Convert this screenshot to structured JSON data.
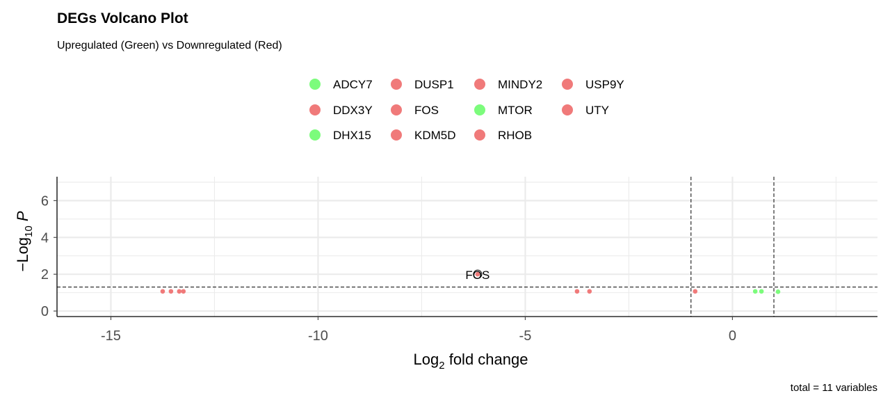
{
  "chart_data": {
    "type": "scatter",
    "title": "DEGs Volcano Plot",
    "subtitle": "Upregulated (Green) vs Downregulated (Red)",
    "xlabel": "Log2 fold change",
    "ylabel": "-Log10 P",
    "xlim": [
      -16.3,
      3.5
    ],
    "ylim": [
      -0.3,
      7.3
    ],
    "x_ticks": [
      -15,
      -10,
      -5,
      0
    ],
    "y_ticks": [
      0,
      2,
      4,
      6
    ],
    "grid": true,
    "fc_cutoff_lines": [
      -1,
      1
    ],
    "p_cutoff_line": 1.3,
    "colors": {
      "up": "#7cfc7c",
      "down": "#f07a7a",
      "grid": "#ebebeb",
      "axis": "#000000",
      "tick": "#4d4d4d"
    },
    "legend_position": "top",
    "legend": [
      {
        "name": "ADCY7",
        "status": "up"
      },
      {
        "name": "DDX3Y",
        "status": "down"
      },
      {
        "name": "DHX15",
        "status": "up"
      },
      {
        "name": "DUSP1",
        "status": "down"
      },
      {
        "name": "FOS",
        "status": "down"
      },
      {
        "name": "KDM5D",
        "status": "down"
      },
      {
        "name": "MINDY2",
        "status": "down"
      },
      {
        "name": "MTOR",
        "status": "up"
      },
      {
        "name": "RHOB",
        "status": "down"
      },
      {
        "name": "USP9Y",
        "status": "down"
      },
      {
        "name": "UTY",
        "status": "down"
      }
    ],
    "points": [
      {
        "x": -13.75,
        "y": 1.07,
        "status": "down"
      },
      {
        "x": -13.55,
        "y": 1.07,
        "status": "down"
      },
      {
        "x": -13.35,
        "y": 1.07,
        "status": "down"
      },
      {
        "x": -13.25,
        "y": 1.07,
        "status": "down"
      },
      {
        "x": -6.15,
        "y": 2.0,
        "status": "down",
        "label": "FOS"
      },
      {
        "x": -3.75,
        "y": 1.07,
        "status": "down"
      },
      {
        "x": -3.45,
        "y": 1.07,
        "status": "down"
      },
      {
        "x": -0.9,
        "y": 1.07,
        "status": "down"
      },
      {
        "x": 0.55,
        "y": 1.07,
        "status": "up"
      },
      {
        "x": 0.7,
        "y": 1.07,
        "status": "up"
      },
      {
        "x": 1.1,
        "y": 1.05,
        "status": "up"
      }
    ],
    "caption": "total = 11 variables"
  }
}
